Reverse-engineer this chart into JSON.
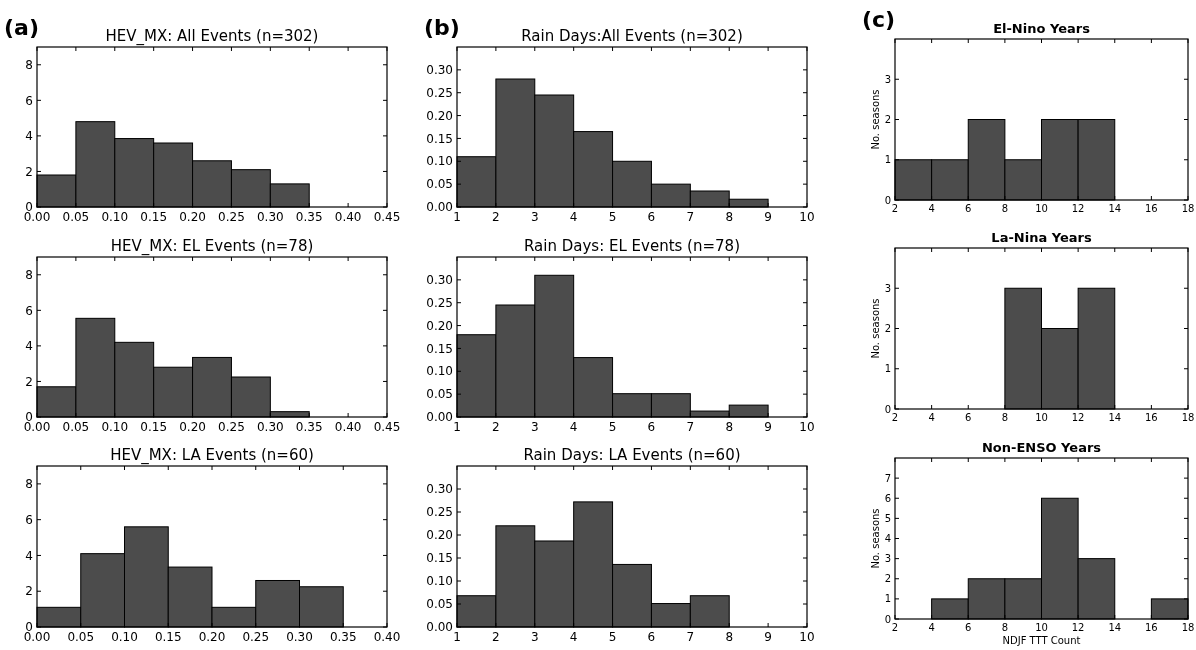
{
  "chart_data": [
    {
      "type": "histogram",
      "title": "HEV_MX: All Events (n=302)",
      "annotations": [
        "(a)"
      ],
      "color": "#4c4c4c",
      "bins": [
        0,
        0.05,
        0.1,
        0.15,
        0.2,
        0.25,
        0.3,
        0.35,
        0.4,
        0.45
      ],
      "values": [
        1.8,
        4.8,
        3.85,
        3.6,
        2.6,
        2.1,
        1.3,
        0,
        0
      ],
      "xlim": [
        0,
        0.45
      ],
      "xticks": [
        {
          "value": 0,
          "label": "0.00"
        },
        0.05,
        {
          "value": 0.1,
          "label": "0.10"
        },
        0.15,
        {
          "value": 0.2,
          "label": "0.20"
        },
        0.25,
        {
          "value": 0.3,
          "label": "0.30"
        },
        0.35,
        {
          "value": 0.4,
          "label": "0.40"
        },
        0.45
      ],
      "ylim": [
        0,
        9
      ],
      "yticks": [
        0,
        2,
        4,
        6,
        8
      ],
      "grid": false
    },
    {
      "type": "histogram",
      "title": "HEV_MX: EL Events (n=78)",
      "color": "#4c4c4c",
      "bins": [
        0,
        0.05,
        0.1,
        0.15,
        0.2,
        0.25,
        0.3,
        0.35,
        0.4,
        0.45
      ],
      "values": [
        1.7,
        5.55,
        4.2,
        2.8,
        3.35,
        2.25,
        0.3,
        0,
        0
      ],
      "xlim": [
        0,
        0.45
      ],
      "xticks": [
        {
          "value": 0,
          "label": "0.00"
        },
        0.05,
        {
          "value": 0.1,
          "label": "0.10"
        },
        0.15,
        {
          "value": 0.2,
          "label": "0.20"
        },
        0.25,
        {
          "value": 0.3,
          "label": "0.30"
        },
        0.35,
        {
          "value": 0.4,
          "label": "0.40"
        },
        0.45
      ],
      "ylim": [
        0,
        9
      ],
      "yticks": [
        0,
        2,
        4,
        6,
        8
      ],
      "grid": false
    },
    {
      "type": "histogram",
      "title": "HEV_MX: LA Events (n=60)",
      "color": "#4c4c4c",
      "bins": [
        0,
        0.05,
        0.1,
        0.15,
        0.2,
        0.25,
        0.3,
        0.35,
        0.4
      ],
      "values": [
        1.1,
        4.1,
        5.6,
        3.35,
        1.1,
        2.6,
        2.25,
        0
      ],
      "xlim": [
        0,
        0.4
      ],
      "xticks": [
        {
          "value": 0,
          "label": "0.00"
        },
        0.05,
        {
          "value": 0.1,
          "label": "0.10"
        },
        0.15,
        {
          "value": 0.2,
          "label": "0.20"
        },
        0.25,
        {
          "value": 0.3,
          "label": "0.30"
        },
        0.35,
        {
          "value": 0.4,
          "label": "0.40"
        }
      ],
      "ylim": [
        0,
        9
      ],
      "yticks": [
        0,
        2,
        4,
        6,
        8
      ],
      "grid": false
    },
    {
      "type": "histogram",
      "title": "Rain Days:All Events (n=302)",
      "annotations": [
        "(b)"
      ],
      "color": "#4c4c4c",
      "bins": [
        1,
        2,
        3,
        4,
        5,
        6,
        7,
        8,
        9,
        10
      ],
      "values": [
        0.11,
        0.28,
        0.245,
        0.165,
        0.1,
        0.05,
        0.035,
        0.017,
        0
      ],
      "xlim": [
        1,
        10
      ],
      "xticks": [
        1,
        2,
        3,
        4,
        5,
        6,
        7,
        8,
        9,
        10
      ],
      "ylim": [
        0,
        0.35
      ],
      "yticks": [
        {
          "value": 0,
          "label": "0.00"
        },
        0.05,
        {
          "value": 0.1,
          "label": "0.10"
        },
        0.15,
        {
          "value": 0.2,
          "label": "0.20"
        },
        0.25,
        {
          "value": 0.3,
          "label": "0.30"
        }
      ],
      "grid": false
    },
    {
      "type": "histogram",
      "title": "Rain Days: EL Events (n=78)",
      "color": "#4c4c4c",
      "bins": [
        1,
        2,
        3,
        4,
        5,
        6,
        7,
        8,
        9,
        10
      ],
      "values": [
        0.18,
        0.245,
        0.31,
        0.13,
        0.051,
        0.051,
        0.013,
        0.026,
        0
      ],
      "xlim": [
        1,
        10
      ],
      "xticks": [
        1,
        2,
        3,
        4,
        5,
        6,
        7,
        8,
        9,
        10
      ],
      "ylim": [
        0,
        0.35
      ],
      "yticks": [
        {
          "value": 0,
          "label": "0.00"
        },
        0.05,
        {
          "value": 0.1,
          "label": "0.10"
        },
        0.15,
        {
          "value": 0.2,
          "label": "0.20"
        },
        0.25,
        {
          "value": 0.3,
          "label": "0.30"
        }
      ],
      "grid": false
    },
    {
      "type": "histogram",
      "title": "Rain Days: LA Events (n=60)",
      "color": "#4c4c4c",
      "bins": [
        1,
        2,
        3,
        4,
        5,
        6,
        7,
        8,
        9,
        10
      ],
      "values": [
        0.068,
        0.22,
        0.187,
        0.272,
        0.136,
        0.051,
        0.068,
        0,
        0
      ],
      "xlim": [
        1,
        10
      ],
      "xticks": [
        1,
        2,
        3,
        4,
        5,
        6,
        7,
        8,
        9,
        10
      ],
      "ylim": [
        0,
        0.35
      ],
      "yticks": [
        {
          "value": 0,
          "label": "0.00"
        },
        0.05,
        {
          "value": 0.1,
          "label": "0.10"
        },
        0.15,
        {
          "value": 0.2,
          "label": "0.20"
        },
        0.25,
        {
          "value": 0.3,
          "label": "0.30"
        }
      ],
      "grid": false
    },
    {
      "type": "histogram",
      "title": "El-Nino Years",
      "annotations": [
        "(c)"
      ],
      "ylabel": "No. seasons",
      "color": "#4c4c4c",
      "bins": [
        2,
        4,
        6,
        8,
        10,
        12,
        14,
        16,
        18
      ],
      "values": [
        1,
        1,
        2,
        1,
        2,
        2,
        0,
        0
      ],
      "xlim": [
        2,
        18
      ],
      "xticks": [
        2,
        4,
        6,
        8,
        10,
        12,
        14,
        16,
        18
      ],
      "ylim": [
        0,
        4
      ],
      "yticks": [
        0,
        1,
        2,
        3
      ],
      "grid": false
    },
    {
      "type": "histogram",
      "title": "La-Nina Years",
      "ylabel": "No. seasons",
      "color": "#4c4c4c",
      "bins": [
        2,
        4,
        6,
        8,
        10,
        12,
        14,
        16,
        18
      ],
      "values": [
        0,
        0,
        0,
        3,
        2,
        3,
        0,
        0
      ],
      "xlim": [
        2,
        18
      ],
      "xticks": [
        2,
        4,
        6,
        8,
        10,
        12,
        14,
        16,
        18
      ],
      "ylim": [
        0,
        4
      ],
      "yticks": [
        0,
        1,
        2,
        3
      ],
      "grid": false
    },
    {
      "type": "histogram",
      "title": "Non-ENSO Years",
      "ylabel": "No. seasons",
      "xlabel": "NDJF TTT Count",
      "color": "#4c4c4c",
      "bins": [
        2,
        4,
        6,
        8,
        10,
        12,
        14,
        16,
        18
      ],
      "values": [
        0,
        1,
        2,
        2,
        6,
        3,
        0,
        1
      ],
      "xlim": [
        2,
        18
      ],
      "xticks": [
        2,
        4,
        6,
        8,
        10,
        12,
        14,
        16,
        18
      ],
      "ylim": [
        0,
        8
      ],
      "yticks": [
        0,
        1,
        2,
        3,
        4,
        5,
        6,
        7
      ],
      "grid": false
    }
  ]
}
